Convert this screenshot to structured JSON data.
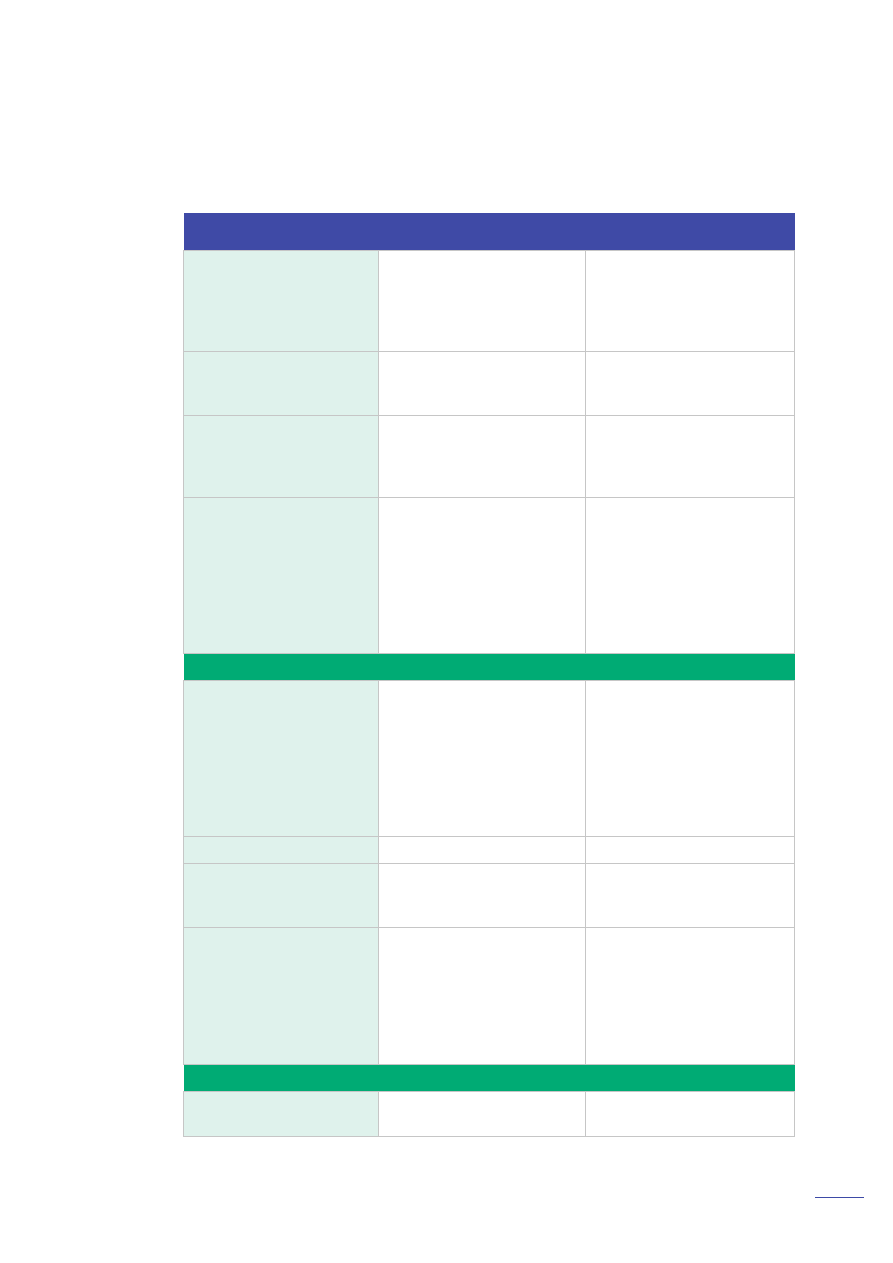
{
  "colors": {
    "header_band": "#3f4aa6",
    "section_band": "#00ab74",
    "label_cell": "#dff2ec",
    "value_cell": "#ffffff",
    "grid_line": "#c6c6c6",
    "footer_rule": "#3d4aa6"
  },
  "table": {
    "header": [
      "",
      "",
      ""
    ],
    "sections": [
      {
        "title": "",
        "rows": [
          [
            "",
            "",
            ""
          ],
          [
            "",
            "",
            ""
          ],
          [
            "",
            "",
            ""
          ],
          [
            "",
            "",
            ""
          ]
        ]
      },
      {
        "title": "",
        "rows": [
          [
            "",
            "",
            ""
          ],
          [
            "",
            "",
            ""
          ],
          [
            "",
            "",
            ""
          ],
          [
            "",
            "",
            ""
          ]
        ]
      },
      {
        "title": "",
        "rows": [
          [
            "",
            "",
            ""
          ]
        ]
      }
    ]
  },
  "footer": {
    "page_number": ""
  }
}
